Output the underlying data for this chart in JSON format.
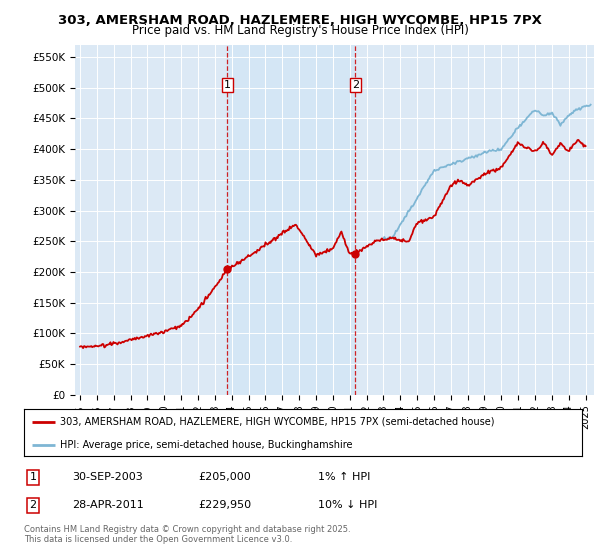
{
  "title_line1": "303, AMERSHAM ROAD, HAZLEMERE, HIGH WYCOMBE, HP15 7PX",
  "title_line2": "Price paid vs. HM Land Registry's House Price Index (HPI)",
  "ylabel_ticks": [
    "£0",
    "£50K",
    "£100K",
    "£150K",
    "£200K",
    "£250K",
    "£300K",
    "£350K",
    "£400K",
    "£450K",
    "£500K",
    "£550K"
  ],
  "ytick_values": [
    0,
    50000,
    100000,
    150000,
    200000,
    250000,
    300000,
    350000,
    400000,
    450000,
    500000,
    550000
  ],
  "ylim": [
    0,
    570000
  ],
  "xlim_start": 1994.7,
  "xlim_end": 2025.5,
  "purchase1_x": 2003.75,
  "purchase1_y": 205000,
  "purchase2_x": 2011.33,
  "purchase2_y": 229950,
  "red_color": "#cc0000",
  "blue_color": "#7eb6d4",
  "shade_color": "#d0e4f5",
  "background_color": "#dce9f5",
  "legend_label_red": "303, AMERSHAM ROAD, HAZLEMERE, HIGH WYCOMBE, HP15 7PX (semi-detached house)",
  "legend_label_blue": "HPI: Average price, semi-detached house, Buckinghamshire",
  "note1_date": "30-SEP-2003",
  "note1_price": "£205,000",
  "note1_hpi": "1% ↑ HPI",
  "note2_date": "28-APR-2011",
  "note2_price": "£229,950",
  "note2_hpi": "10% ↓ HPI",
  "footer": "Contains HM Land Registry data © Crown copyright and database right 2025.\nThis data is licensed under the Open Government Licence v3.0."
}
